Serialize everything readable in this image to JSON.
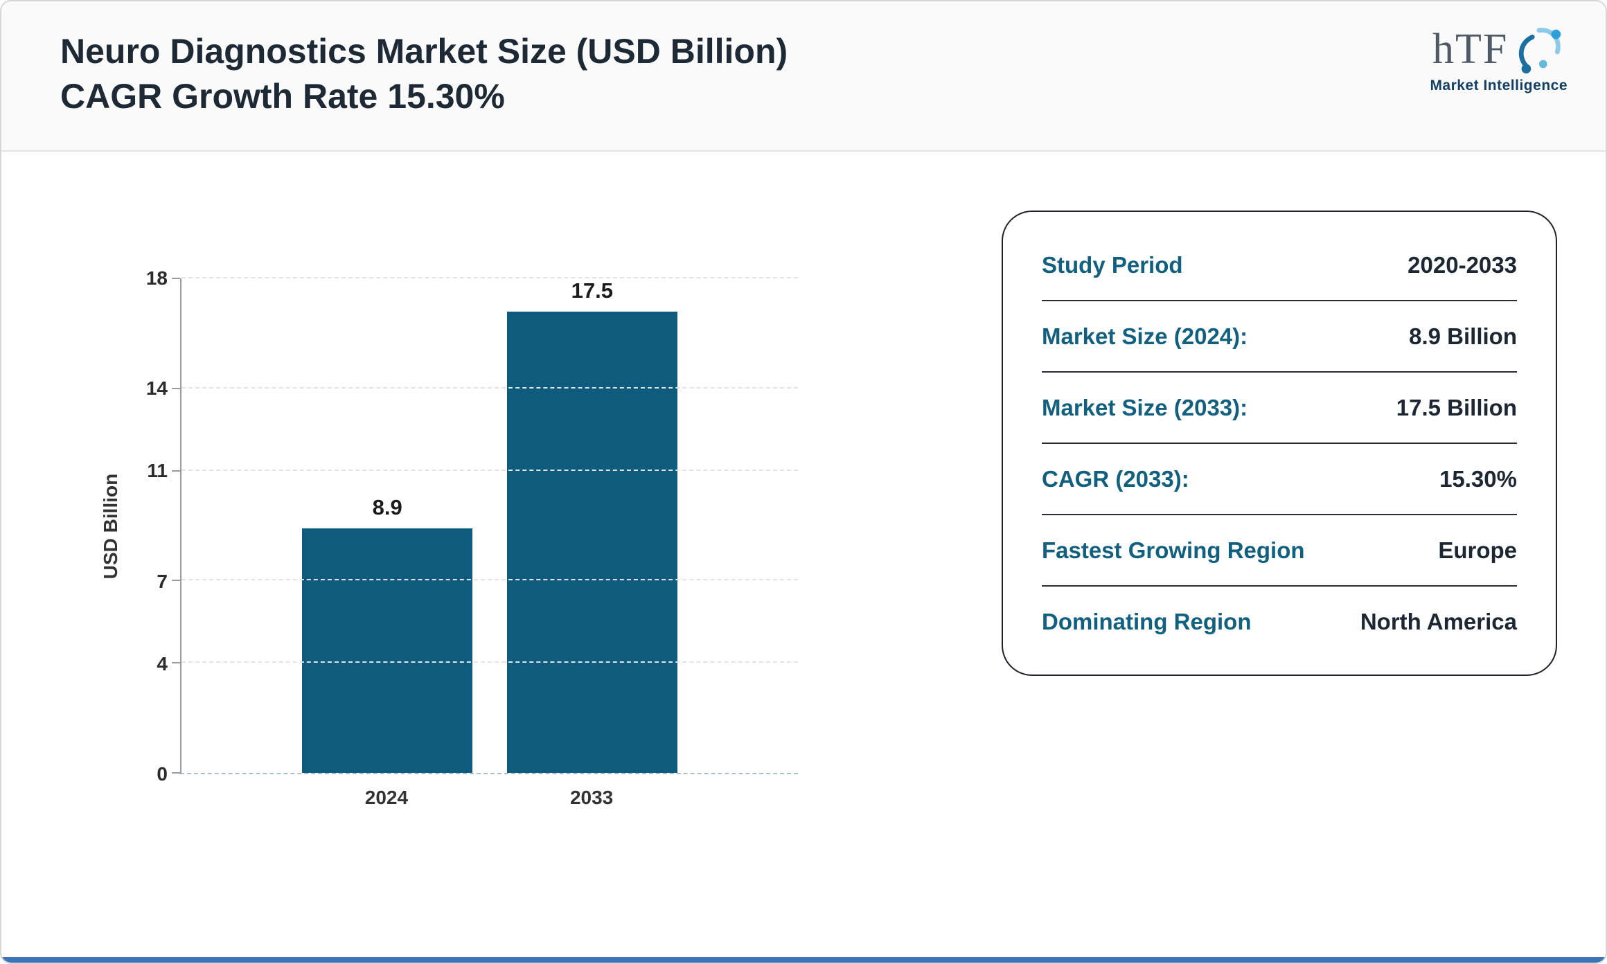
{
  "header": {
    "title_line1": "Neuro Diagnostics Market Size (USD Billion)",
    "title_line2": "CAGR Growth Rate 15.30%"
  },
  "logo": {
    "text": "hTF",
    "subtext": "Market Intelligence"
  },
  "chart_data": {
    "type": "bar",
    "title": "Neuro Diagnostics Market Size (USD Billion) CAGR Growth Rate 15.30%",
    "categories": [
      "2024",
      "2033"
    ],
    "values": [
      8.9,
      17.5
    ],
    "value_labels": [
      "8.9",
      "17.5"
    ],
    "xlabel": "",
    "ylabel": "USD Billion",
    "yticks": [
      0,
      4,
      7,
      11,
      14,
      18
    ],
    "ylim": [
      0,
      18
    ],
    "grid": "dashed horizontal",
    "legend": "none",
    "bar_color": "#0e5b7d"
  },
  "info_card": {
    "rows": [
      {
        "label": "Study Period",
        "value": "2020-2033"
      },
      {
        "label": "Market Size (2024):",
        "value": "8.9 Billion"
      },
      {
        "label": "Market Size (2033):",
        "value": "17.5 Billion"
      },
      {
        "label": "CAGR (2033):",
        "value": "15.30%"
      },
      {
        "label": "Fastest Growing Region",
        "value": "Europe"
      },
      {
        "label": "Dominating Region",
        "value": "North America"
      }
    ]
  },
  "colors": {
    "bar": "#0e5b7d",
    "card_label_blue": "#12607f",
    "title_text": "#1d2935",
    "footer_accent": "#3d74b8"
  }
}
